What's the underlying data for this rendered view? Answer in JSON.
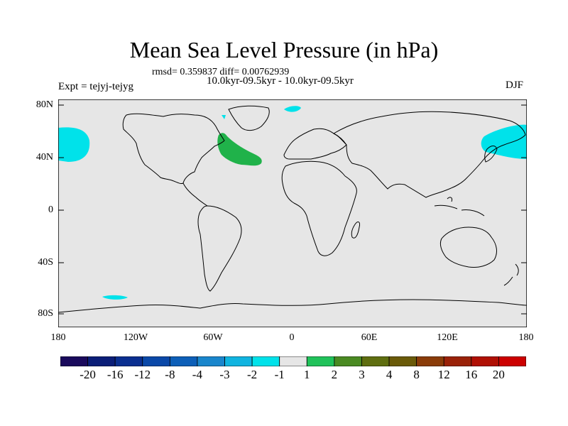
{
  "title": "Mean Sea Level Pressure (in hPa)",
  "stats": "rmsd= 0.359837 diff= 0.00762939",
  "period": "10.0kyr-09.5kyr - 10.0kyr-09.5kyr",
  "expt": "Expt = tejyj-tejyg",
  "season": "DJF",
  "lat_labels": [
    "80N",
    "40N",
    "0",
    "40S",
    "80S"
  ],
  "lon_labels": [
    "180",
    "120W",
    "60W",
    "0",
    "60E",
    "120E",
    "180"
  ],
  "colorbar": {
    "labels": [
      "-20",
      "-16",
      "-12",
      "-8",
      "-4",
      "-3",
      "-2",
      "-1",
      "1",
      "2",
      "3",
      "4",
      "8",
      "12",
      "16",
      "20"
    ],
    "colors": [
      "#1a0a5c",
      "#0b1e78",
      "#0a2f90",
      "#0a48a8",
      "#0d5fb8",
      "#1a86cc",
      "#10b4e0",
      "#00e2ea",
      "#e6e6e6",
      "#20c25a",
      "#4a8a22",
      "#5f6e10",
      "#6a5a08",
      "#8a3c08",
      "#9a2208",
      "#b01004",
      "#cc0000"
    ]
  },
  "colors": {
    "map_bg": "#e6e6e6",
    "negative_anomaly": "#00e2ea",
    "positive_anomaly": "#20b24a"
  }
}
